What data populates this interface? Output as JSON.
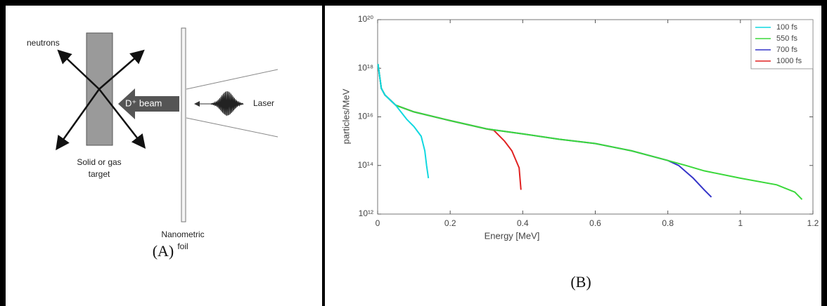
{
  "diagram": {
    "labels": {
      "neutrons": "neutrons",
      "beam": "D⁺ beam",
      "laser": "Laser",
      "target": [
        "Solid or gas",
        "target"
      ],
      "foil": [
        "Nanometric",
        "foil"
      ]
    },
    "panel_label": "(A)"
  },
  "chart_data": {
    "type": "line",
    "panel_label": "(B)",
    "x_label": "Energy [MeV]",
    "y_label": "particles/MeV",
    "log_y": true,
    "legend": "upper right",
    "xlim": [
      0,
      1.2
    ],
    "ylim": [
      1000000000000.0,
      1e+20
    ],
    "xticks": [
      0,
      0.2,
      0.4,
      0.6,
      0.8,
      1,
      1.2
    ],
    "yticks": [
      {
        "value": 1000000000000.0,
        "label": "10¹²"
      },
      {
        "value": 100000000000000.0,
        "label": "10¹⁴"
      },
      {
        "value": 1e+16,
        "label": "10¹⁶"
      },
      {
        "value": 1e+18,
        "label": "10¹⁸"
      },
      {
        "value": 1e+20,
        "label": "10²⁰"
      }
    ],
    "series": [
      {
        "name": "100 fs",
        "color": "#10d8e0",
        "x": [
          0.001,
          0.01,
          0.02,
          0.05,
          0.08,
          0.1,
          0.12,
          0.13,
          0.135,
          0.14
        ],
        "values": [
          1.5e+18,
          1.5e+17,
          8e+16,
          3e+16,
          8000000000000000.0,
          4000000000000000.0,
          1600000000000000.0,
          400000000000000.0,
          100000000000000.0,
          30000000000000.0
        ]
      },
      {
        "name": "550 fs",
        "color": "#3ad83a",
        "x": [
          0.001,
          0.01,
          0.02,
          0.05,
          0.1,
          0.2,
          0.3,
          0.4,
          0.5,
          0.6,
          0.7,
          0.8,
          0.85,
          0.9,
          1.0,
          1.1,
          1.15,
          1.17
        ],
        "values": [
          1.5e+18,
          1.5e+17,
          8e+16,
          3e+16,
          1.6e+16,
          7000000000000000.0,
          3200000000000000.0,
          2000000000000000.0,
          1200000000000000.0,
          800000000000000.0,
          400000000000000.0,
          160000000000000.0,
          100000000000000.0,
          60000000000000.0,
          30000000000000.0,
          16000000000000.0,
          8000000000000.0,
          4000000000000.0
        ]
      },
      {
        "name": "700 fs",
        "color": "#3535c8",
        "x": [
          0.001,
          0.01,
          0.02,
          0.05,
          0.1,
          0.2,
          0.3,
          0.4,
          0.5,
          0.6,
          0.7,
          0.8,
          0.83,
          0.87,
          0.9,
          0.92
        ],
        "values": [
          1.5e+18,
          1.5e+17,
          8e+16,
          3e+16,
          1.6e+16,
          7000000000000000.0,
          3200000000000000.0,
          2000000000000000.0,
          1200000000000000.0,
          800000000000000.0,
          400000000000000.0,
          160000000000000.0,
          100000000000000.0,
          30000000000000.0,
          10000000000000.0,
          5000000000000.0
        ]
      },
      {
        "name": "1000 fs",
        "color": "#e02222",
        "x": [
          0.001,
          0.01,
          0.02,
          0.05,
          0.1,
          0.2,
          0.3,
          0.32,
          0.35,
          0.37,
          0.39,
          0.395
        ],
        "values": [
          1.5e+18,
          1.5e+17,
          8e+16,
          3e+16,
          1.6e+16,
          7000000000000000.0,
          3200000000000000.0,
          2800000000000000.0,
          1000000000000000.0,
          400000000000000.0,
          80000000000000.0,
          10000000000000.0
        ]
      }
    ]
  }
}
